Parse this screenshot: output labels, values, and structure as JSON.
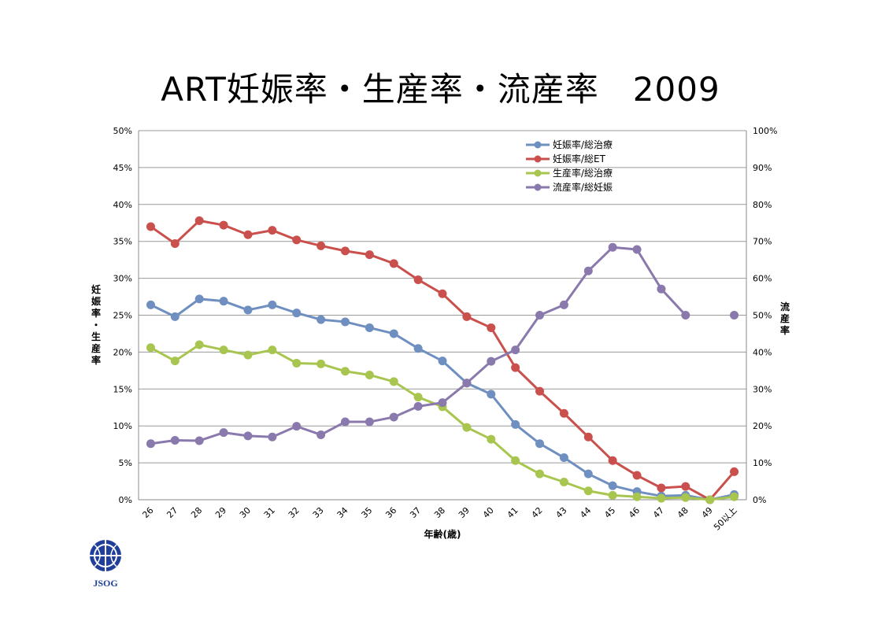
{
  "title": "ART妊娠率・生産率・流産率　2009",
  "logo_text": "JSOG",
  "chart_data": {
    "type": "line",
    "categories": [
      "26",
      "27",
      "28",
      "29",
      "30",
      "31",
      "32",
      "33",
      "34",
      "35",
      "36",
      "37",
      "38",
      "39",
      "40",
      "41",
      "42",
      "43",
      "44",
      "45",
      "46",
      "47",
      "48",
      "49",
      "50以上"
    ],
    "y_left": {
      "label": "妊娠率・生産率",
      "ticks": [
        "0%",
        "5%",
        "10%",
        "15%",
        "20%",
        "25%",
        "30%",
        "35%",
        "40%",
        "45%",
        "50%"
      ],
      "lim": [
        0,
        50
      ]
    },
    "y_right": {
      "label": "流産率",
      "ticks": [
        "0%",
        "10%",
        "20%",
        "30%",
        "40%",
        "50%",
        "60%",
        "70%",
        "80%",
        "90%",
        "100%"
      ],
      "lim": [
        0,
        100
      ]
    },
    "xlabel": "年齢(歳)",
    "grid": true,
    "legend_position": "top-right",
    "series": [
      {
        "name": "妊娠率/総治療",
        "color": "#6f8fc0",
        "axis": "left",
        "values": [
          26.4,
          24.8,
          27.2,
          26.9,
          25.7,
          26.4,
          25.3,
          24.4,
          24.1,
          23.3,
          22.5,
          20.5,
          18.8,
          15.8,
          14.3,
          10.2,
          7.6,
          5.7,
          3.5,
          1.9,
          1.1,
          0.5,
          0.6,
          0.0,
          0.7
        ]
      },
      {
        "name": "妊娠率/総ET",
        "color": "#c9504c",
        "axis": "left",
        "values": [
          37.0,
          34.7,
          37.8,
          37.2,
          35.9,
          36.5,
          35.2,
          34.4,
          33.7,
          33.2,
          32.0,
          29.8,
          27.9,
          24.8,
          23.3,
          17.9,
          14.7,
          11.7,
          8.5,
          5.3,
          3.3,
          1.6,
          1.8,
          0.0,
          3.8
        ]
      },
      {
        "name": "生産率/総治療",
        "color": "#a8c64f",
        "axis": "left",
        "values": [
          20.6,
          18.8,
          21.0,
          20.3,
          19.6,
          20.3,
          18.5,
          18.4,
          17.4,
          16.9,
          16.0,
          13.9,
          12.6,
          9.8,
          8.2,
          5.3,
          3.5,
          2.4,
          1.2,
          0.6,
          0.4,
          0.2,
          0.3,
          0.0,
          0.4
        ]
      },
      {
        "name": "流産率/総妊娠",
        "color": "#8a79ac",
        "axis": "right",
        "values": [
          15.2,
          16.1,
          16.0,
          18.2,
          17.3,
          17.0,
          19.9,
          17.6,
          21.1,
          21.1,
          22.4,
          25.3,
          26.3,
          31.6,
          37.5,
          40.6,
          50.0,
          52.8,
          62.0,
          68.4,
          67.8,
          57.1,
          50.0,
          null,
          50.0
        ]
      }
    ]
  }
}
